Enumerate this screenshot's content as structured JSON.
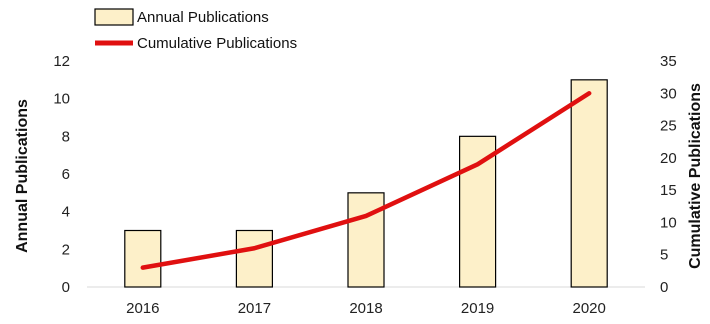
{
  "chart_data": {
    "type": "bar",
    "categories": [
      "2016",
      "2017",
      "2018",
      "2019",
      "2020"
    ],
    "series": [
      {
        "name": "Annual Publications",
        "type": "bar",
        "axis": "left",
        "values": [
          3,
          3,
          5,
          8,
          11
        ]
      },
      {
        "name": "Cumulative Publications",
        "type": "line",
        "axis": "right",
        "values": [
          3,
          6,
          11,
          19,
          30
        ]
      }
    ],
    "ylabel_left": "Annual Publications",
    "ylabel_right": "Cumulative Publications",
    "ylim_left": [
      0,
      12
    ],
    "yticks_left": [
      "0",
      "2",
      "4",
      "6",
      "8",
      "10",
      "12"
    ],
    "ylim_right": [
      0,
      35
    ],
    "yticks_right": [
      "0",
      "5",
      "10",
      "15",
      "20",
      "25",
      "30",
      "35"
    ],
    "grid": false,
    "legend": "top-left",
    "colors": {
      "bar_fill": "#fdf0c9",
      "bar_stroke": "#000000",
      "line": "#e01010"
    }
  }
}
